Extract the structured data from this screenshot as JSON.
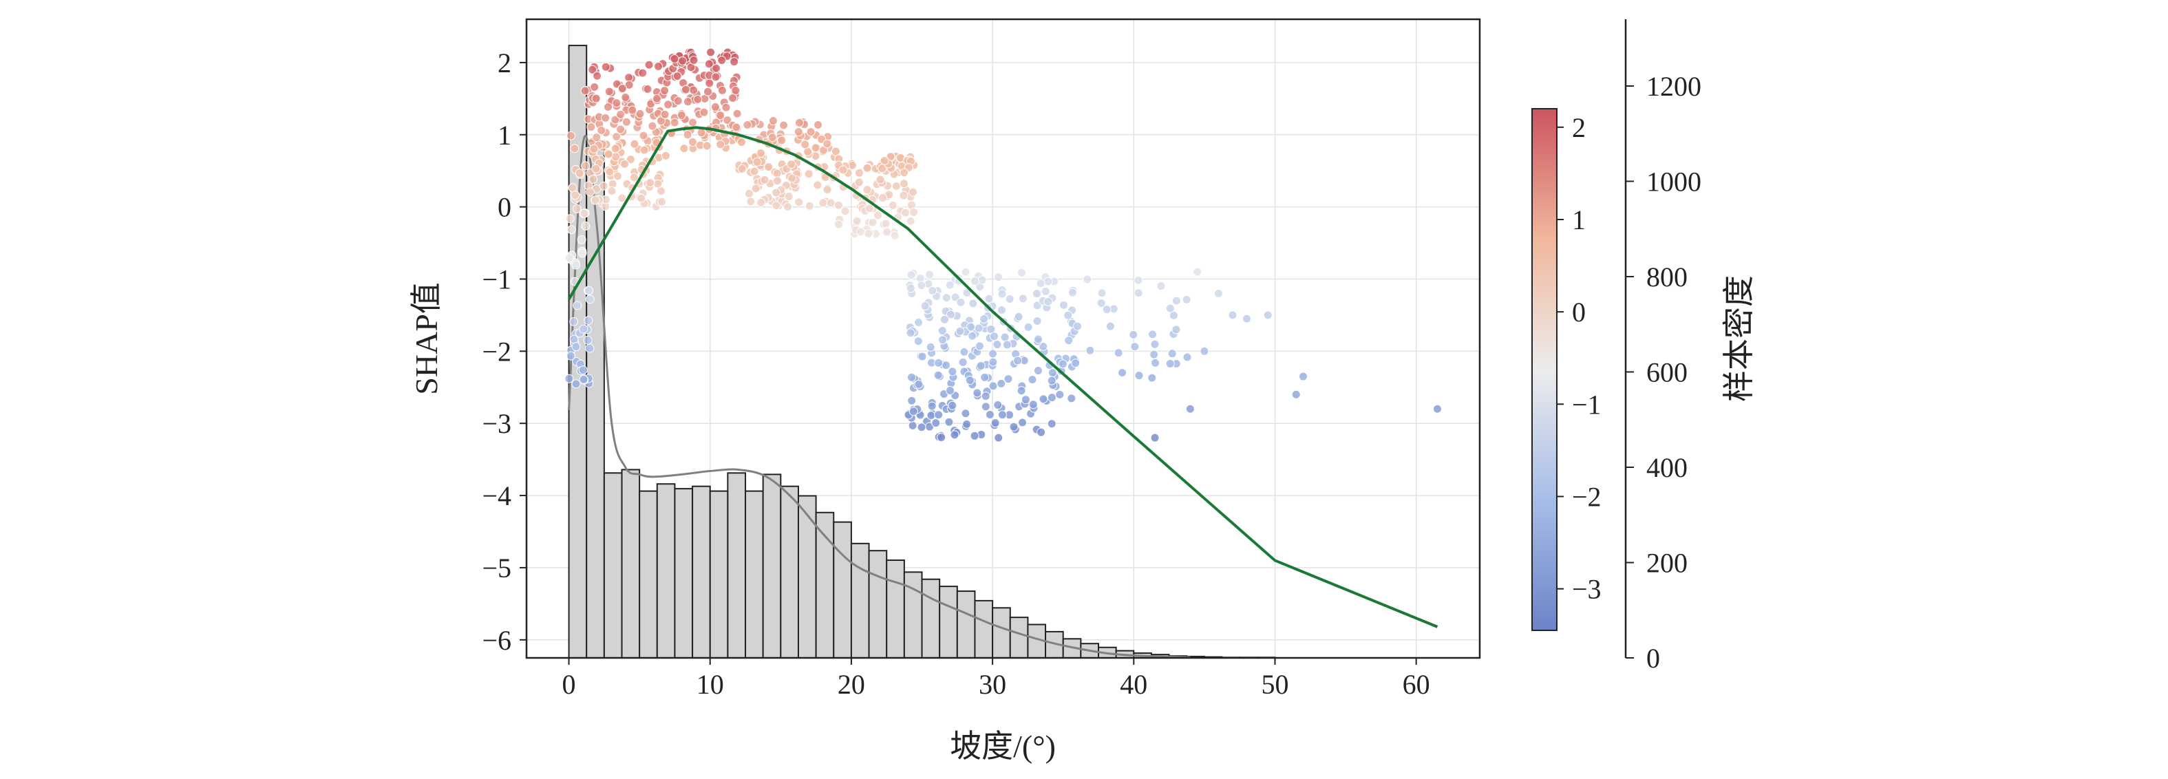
{
  "chart_data": {
    "type": "scatter",
    "xlabel": "坡度/(°)",
    "ylabel": "SHAP值",
    "xlim": [
      -3,
      64.5
    ],
    "ylim": [
      -6.25,
      2.6
    ],
    "xticks": [
      "0",
      "10",
      "20",
      "30",
      "40",
      "50",
      "60"
    ],
    "yticks": [
      "2",
      "1",
      "0",
      "−1",
      "−2",
      "−3",
      "−4",
      "−5",
      "−6"
    ],
    "grid": true,
    "colorbar": {
      "label": "",
      "range": [
        -3.45,
        2.2
      ],
      "ticks": [
        "2",
        "1",
        "0",
        "−1",
        "−2",
        "−3"
      ],
      "colormap": "coolwarm"
    },
    "right_axis": {
      "label": "样本密度",
      "range": [
        0,
        1340
      ],
      "ticks": [
        "0",
        "200",
        "400",
        "600",
        "800",
        "1000",
        "1200"
      ]
    },
    "scatter_clusters": [
      {
        "x_range": [
          0,
          1.5
        ],
        "y_range": [
          -2.6,
          1.7
        ],
        "count": 60
      },
      {
        "x_range": [
          1.5,
          7
        ],
        "y_range": [
          0.0,
          2.0
        ],
        "count": 180
      },
      {
        "x_range": [
          7,
          12
        ],
        "y_range": [
          0.8,
          2.2
        ],
        "count": 130
      },
      {
        "x_range": [
          12,
          19
        ],
        "y_range": [
          0.0,
          1.2
        ],
        "count": 130
      },
      {
        "x_range": [
          19,
          24.5
        ],
        "y_range": [
          -0.4,
          0.7
        ],
        "count": 110
      },
      {
        "x_range": [
          24,
          30
        ],
        "y_range": [
          -3.2,
          -0.9
        ],
        "count": 150
      },
      {
        "x_range": [
          30,
          36
        ],
        "y_range": [
          -3.2,
          -0.9
        ],
        "count": 100
      },
      {
        "x_range": [
          36,
          44
        ],
        "y_range": [
          -2.4,
          -1.0
        ],
        "count": 30
      }
    ],
    "scatter_outliers": [
      {
        "x": 44.5,
        "y": -0.9
      },
      {
        "x": 46,
        "y": -1.2
      },
      {
        "x": 47,
        "y": -1.5
      },
      {
        "x": 48,
        "y": -1.55
      },
      {
        "x": 49.5,
        "y": -1.5
      },
      {
        "x": 51.5,
        "y": -2.6
      },
      {
        "x": 52,
        "y": -2.35
      },
      {
        "x": 44,
        "y": -2.8
      },
      {
        "x": 41.5,
        "y": -3.2
      },
      {
        "x": 61.5,
        "y": -2.8
      },
      {
        "x": 43,
        "y": -1.7
      },
      {
        "x": 45,
        "y": -2.0
      }
    ],
    "trend_line": {
      "color": "#1a7a35",
      "x": [
        0,
        7,
        8,
        9,
        10,
        12,
        14,
        16,
        18,
        20,
        24,
        30,
        40,
        50,
        61.5
      ],
      "y": [
        -1.28,
        1.05,
        1.08,
        1.1,
        1.08,
        1.0,
        0.88,
        0.72,
        0.5,
        0.25,
        -0.3,
        -1.45,
        -3.18,
        -4.9,
        -5.82
      ]
    },
    "histogram": {
      "bin_width": 1.25,
      "bin_start": 0,
      "counts": [
        1285,
        1085,
        388,
        395,
        350,
        365,
        355,
        360,
        350,
        388,
        350,
        385,
        360,
        340,
        305,
        285,
        240,
        225,
        205,
        180,
        165,
        150,
        140,
        120,
        105,
        85,
        70,
        55,
        40,
        30,
        22,
        15,
        10,
        7,
        4,
        3,
        2,
        1,
        1,
        1
      ],
      "fill": "#d3d3d3",
      "edge": "#222222"
    },
    "kde_line": {
      "color": "#808080",
      "x": [
        0,
        1,
        2,
        3,
        4,
        5,
        6,
        8,
        10,
        12,
        14,
        16,
        18,
        20,
        22,
        24,
        26,
        28,
        30,
        32,
        34,
        36,
        38,
        40,
        44
      ],
      "y": [
        520,
        1080,
        900,
        500,
        400,
        385,
        380,
        385,
        392,
        395,
        380,
        330,
        260,
        200,
        170,
        150,
        120,
        95,
        70,
        50,
        33,
        20,
        10,
        5,
        1
      ]
    }
  }
}
